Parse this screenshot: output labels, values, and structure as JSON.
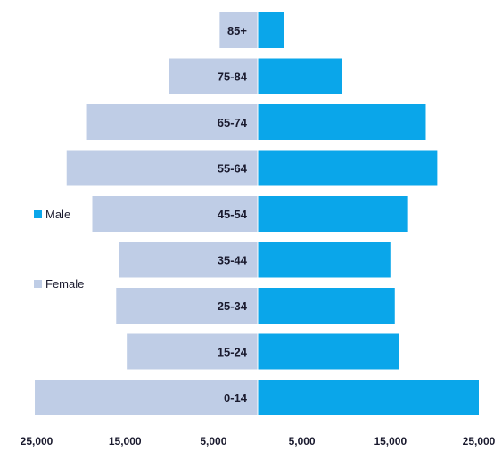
{
  "chart_data": {
    "type": "bar",
    "orientation": "horizontal-population-pyramid",
    "categories": [
      "85+",
      "75-84",
      "65-74",
      "55-64",
      "45-54",
      "35-44",
      "25-34",
      "15-24",
      "0-14"
    ],
    "series": [
      {
        "name": "Male",
        "color": "#0aa6ea",
        "values": [
          3000,
          9500,
          19000,
          20300,
          17000,
          15000,
          15500,
          16000,
          25000
        ]
      },
      {
        "name": "Female",
        "color": "#bfcde6",
        "values": [
          4300,
          10000,
          19300,
          21600,
          18700,
          15700,
          16000,
          14800,
          25200
        ]
      }
    ],
    "xticks": [
      "25,000",
      "15,000",
      "5,000",
      "5,000",
      "15,000",
      "25,000"
    ],
    "xtick_values": [
      -25000,
      -15000,
      -5000,
      5000,
      15000,
      25000
    ],
    "xlim": [
      -25000,
      25000
    ],
    "legend_position": "left",
    "grid": false
  }
}
